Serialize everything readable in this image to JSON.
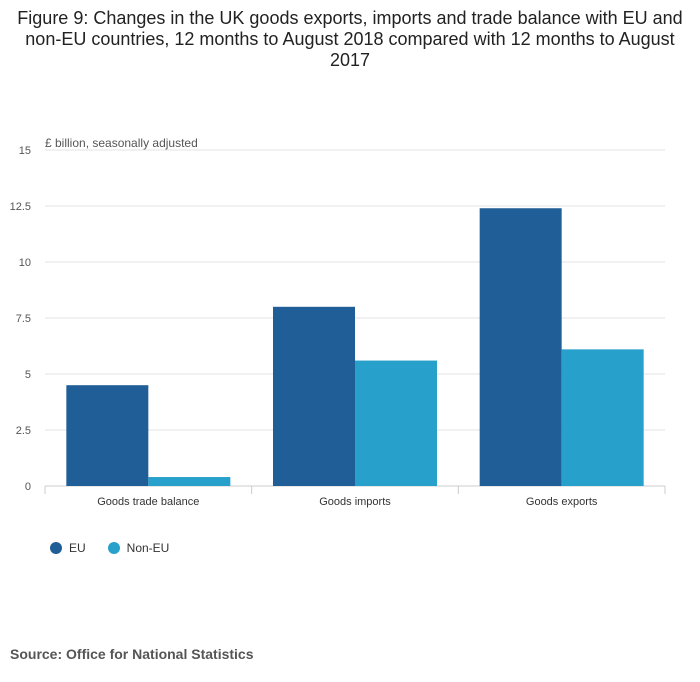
{
  "title": "Figure 9: Changes in the UK goods exports, imports and trade balance with EU and non-EU countries, 12 months to August 2018 compared with 12 months to August 2017",
  "source": "Source: Office for National Statistics",
  "colors": {
    "eu": "#1f5e96",
    "non_eu": "#27a0cc",
    "grid": "#e3e3e3",
    "axis": "#cccccc"
  },
  "chart_data": {
    "type": "bar",
    "ylabel": "£ billion, seasonally adjusted",
    "ylim": [
      0,
      15
    ],
    "yticks": [
      "0",
      "2.5",
      "5",
      "7.5",
      "10",
      "12.5",
      "15"
    ],
    "categories": [
      "Goods trade balance",
      "Goods imports",
      "Goods exports"
    ],
    "series": [
      {
        "name": "EU",
        "values": [
          4.5,
          8.0,
          12.4
        ]
      },
      {
        "name": "Non-EU",
        "values": [
          0.4,
          5.6,
          6.1
        ]
      }
    ],
    "grid": true,
    "legend": "bottom-left"
  }
}
